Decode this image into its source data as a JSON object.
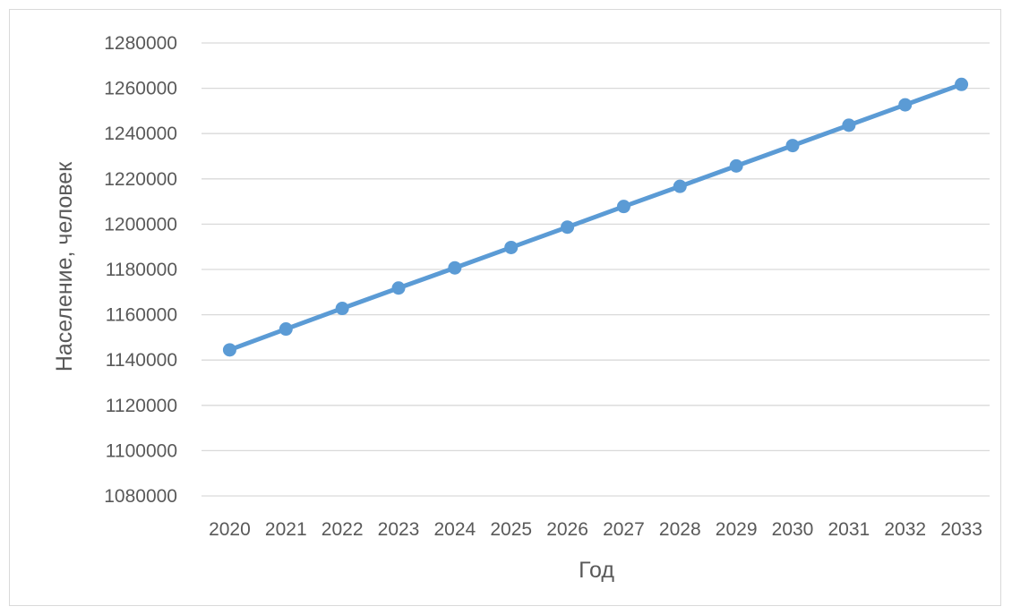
{
  "chart_data": {
    "type": "line",
    "title": "",
    "xlabel": "Год",
    "ylabel": "Население, человек",
    "x": [
      "2020",
      "2021",
      "2022",
      "2023",
      "2024",
      "2025",
      "2026",
      "2027",
      "2028",
      "2029",
      "2030",
      "2031",
      "2032",
      "2033"
    ],
    "series": [
      {
        "values": [
          1144500,
          1153700,
          1162800,
          1171800,
          1180700,
          1189700,
          1198700,
          1207800,
          1216700,
          1225700,
          1234700,
          1243700,
          1252700,
          1261700
        ],
        "color": "#5b9bd5",
        "markers": true
      }
    ],
    "ylim": [
      1080000,
      1280000
    ],
    "yticks": [
      1080000,
      1100000,
      1120000,
      1140000,
      1160000,
      1180000,
      1200000,
      1220000,
      1240000,
      1260000,
      1280000
    ],
    "grid": "horizontal",
    "gridColor": "#d9d9d9",
    "legend": "none"
  }
}
